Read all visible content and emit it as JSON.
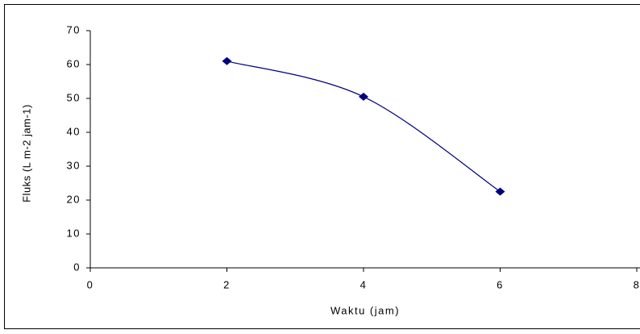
{
  "chart_data": {
    "type": "line",
    "x_label": "Waktu (jam)",
    "y_label": "Fluks (L m-2 jam-1)",
    "x": [
      2,
      4,
      6
    ],
    "series": [
      {
        "color": "#00007f",
        "values": [
          61,
          50.5,
          22.5
        ]
      }
    ],
    "xlim": [
      0,
      8
    ],
    "xticks": [
      0,
      2,
      4,
      6,
      8
    ],
    "ylim": [
      0,
      70
    ],
    "yticks": [
      0,
      10,
      20,
      30,
      40,
      50,
      60,
      70
    ]
  }
}
